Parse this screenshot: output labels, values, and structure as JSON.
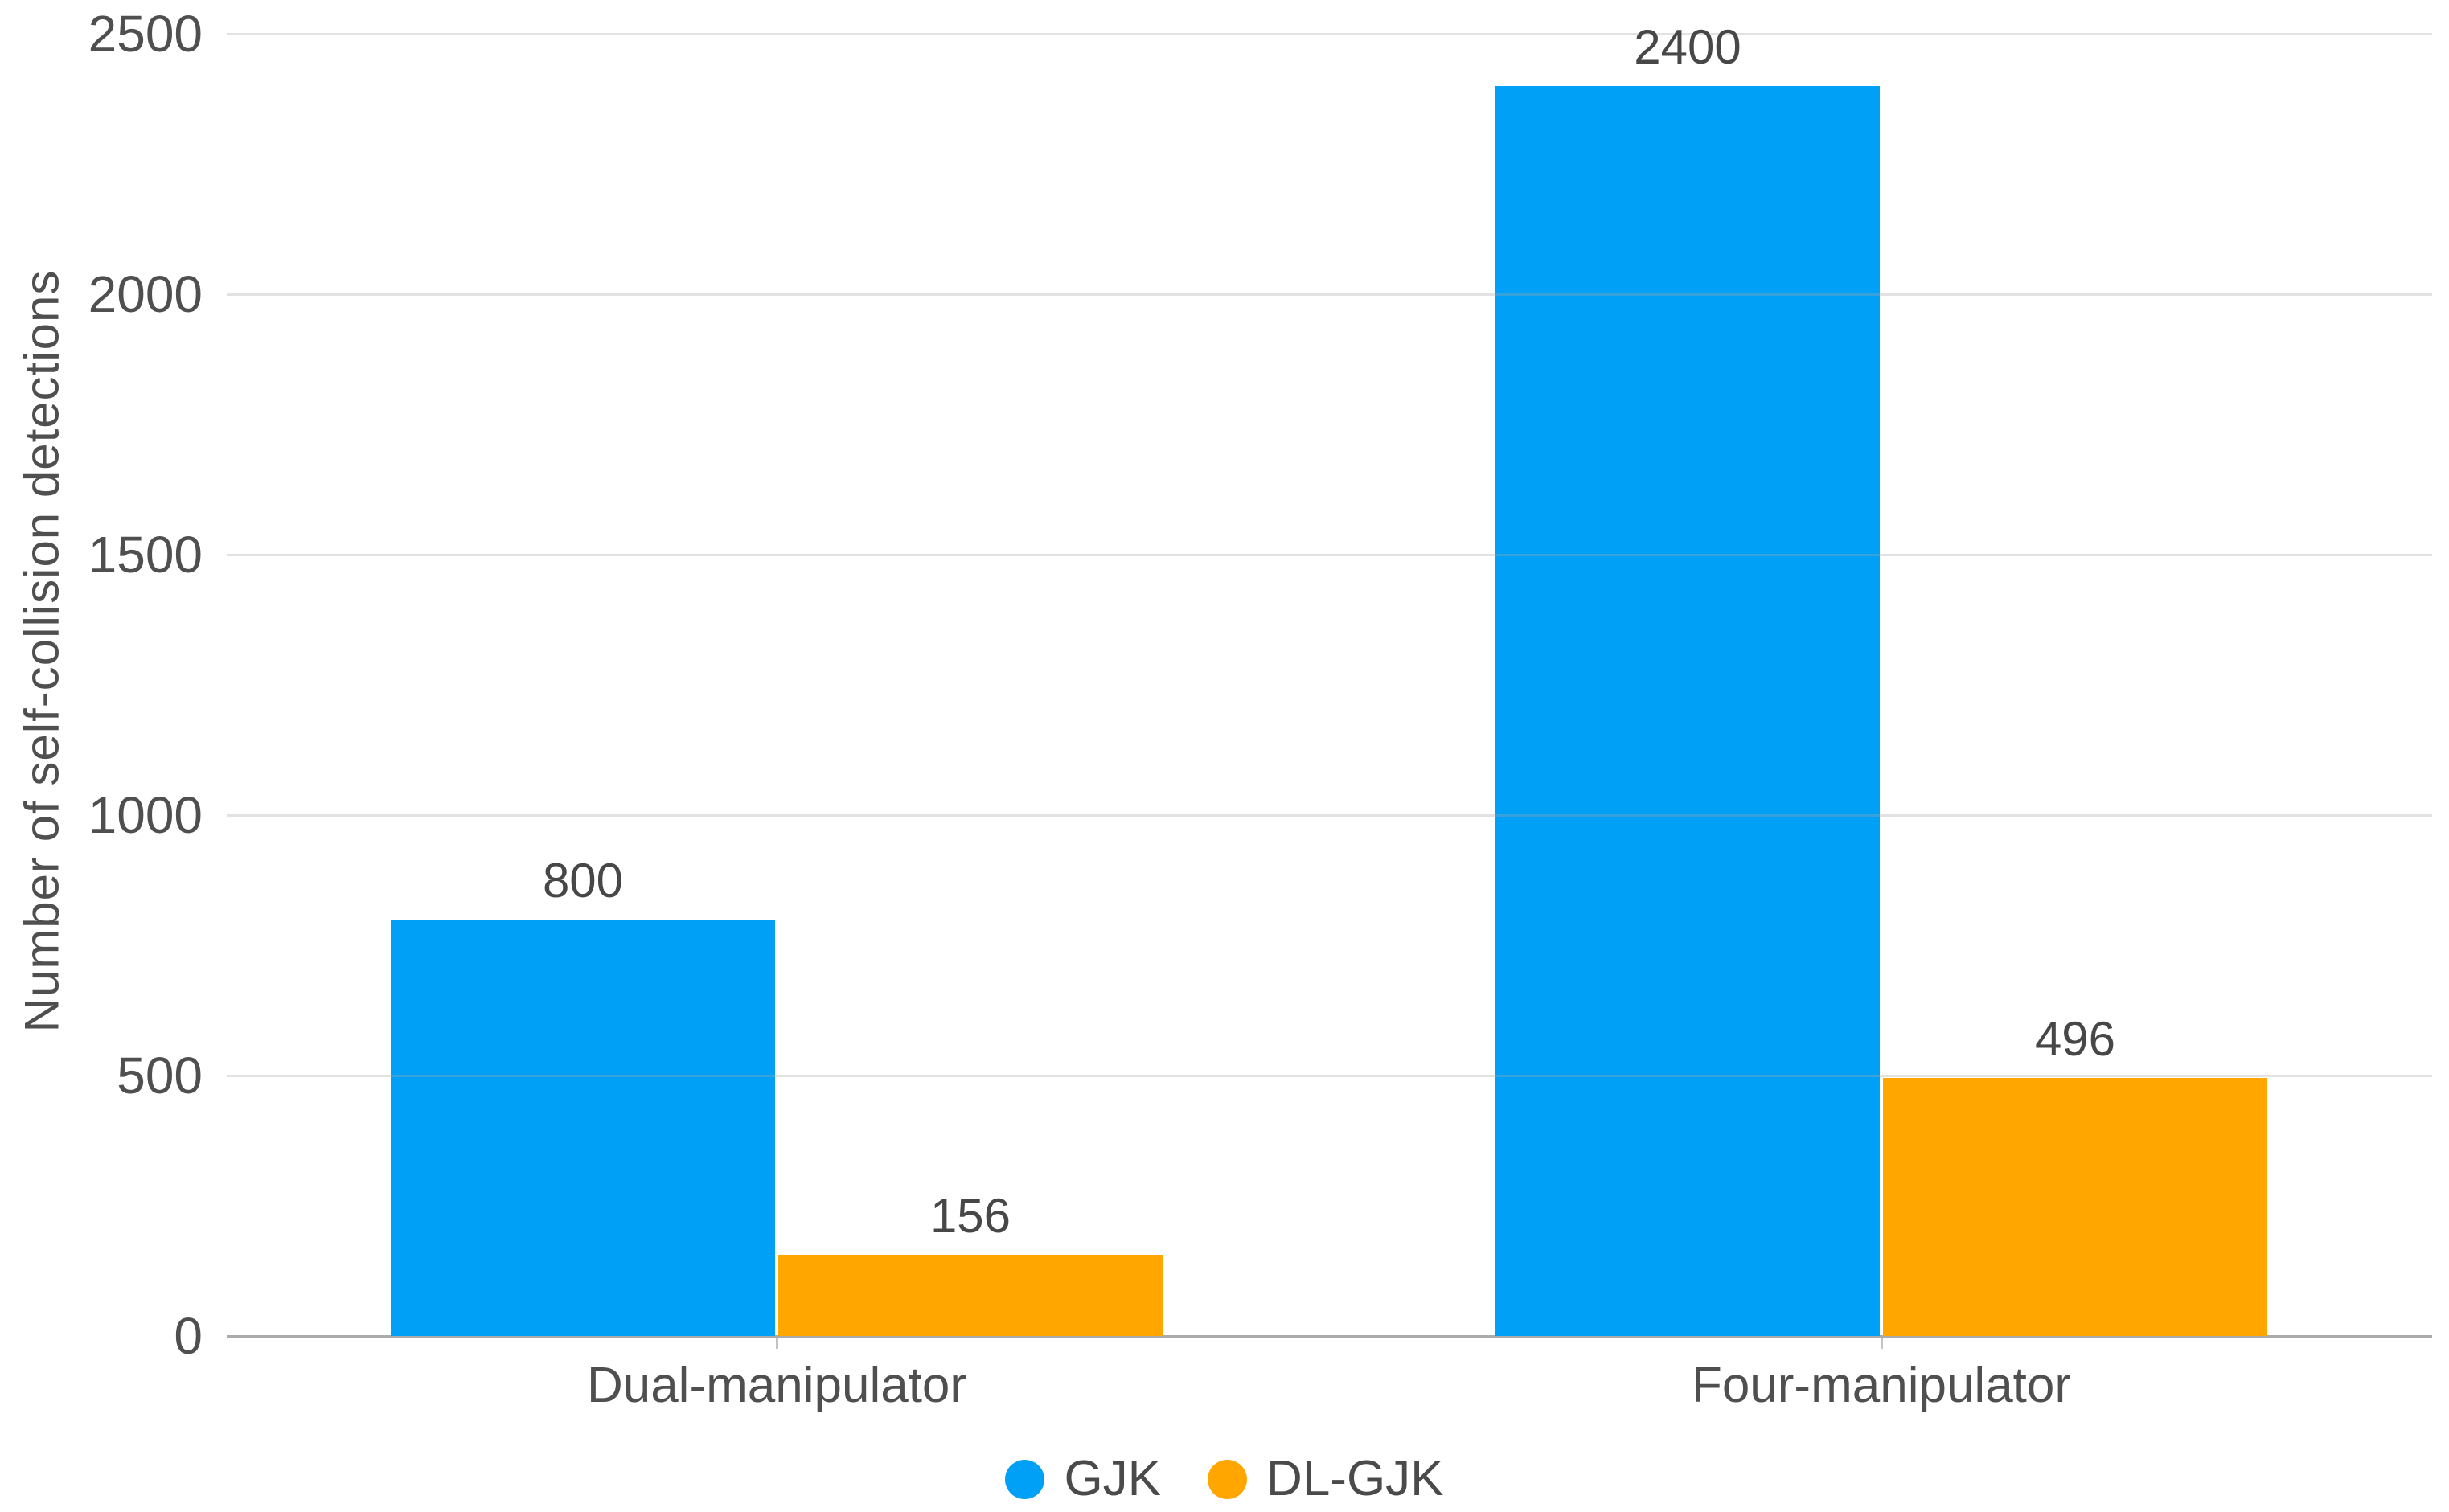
{
  "chart_data": {
    "type": "bar",
    "title": "",
    "categories": [
      "Dual-manipulator",
      "Four-manipulator"
    ],
    "series": [
      {
        "name": "GJK",
        "color": "#00a0f6",
        "values": [
          800,
          2400
        ]
      },
      {
        "name": "DL-GJK",
        "color": "#ffa600",
        "values": [
          156,
          496
        ]
      }
    ],
    "value_labels": [
      "800",
      "156",
      "2400",
      "496"
    ],
    "xlabel": "",
    "ylabel": "Number of self-collision detections",
    "ylim": [
      0,
      2500
    ],
    "yticks": [
      0,
      500,
      1000,
      1500,
      2000,
      2500
    ],
    "grid": "horizontal",
    "legend_position": "bottom"
  },
  "colors": {
    "background": "#ffffff",
    "gridline": "#e2e2e2",
    "axis_line": "#ababab",
    "text": "#4f4f4f"
  }
}
